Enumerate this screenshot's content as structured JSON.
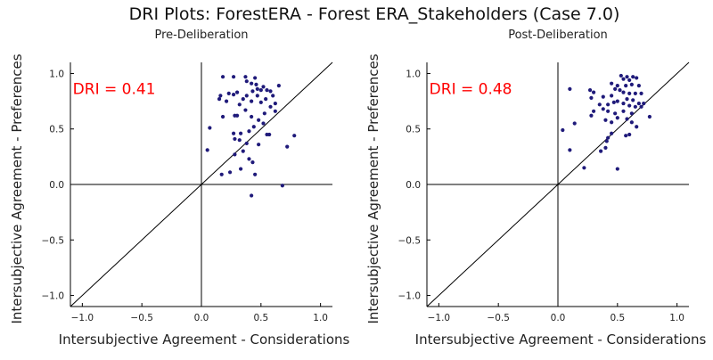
{
  "title": "DRI Plots: ForestERA - Forest ERA_Stakeholders (Case 7.0)",
  "chart_data": [
    {
      "type": "scatter",
      "title": "Pre-Deliberation",
      "annotation": "DRI = 0.41",
      "xlabel": "Intersubjective Agreement - Considerations",
      "ylabel": "Intersubjective Agreement - Preferences",
      "xlim": [
        -1.1,
        1.1
      ],
      "ylim": [
        -1.1,
        1.1
      ],
      "xticks": [
        "−1.0",
        "−0.5",
        "0.0",
        "0.5",
        "1.0"
      ],
      "yticks": [
        "−1.0",
        "−0.5",
        "0.0",
        "0.5",
        "1.0"
      ],
      "point_color": "#1f1a7a",
      "points": [
        [
          0.18,
          0.97
        ],
        [
          0.27,
          0.97
        ],
        [
          0.37,
          0.97
        ],
        [
          0.45,
          0.96
        ],
        [
          0.38,
          0.93
        ],
        [
          0.42,
          0.91
        ],
        [
          0.46,
          0.9
        ],
        [
          0.52,
          0.88
        ],
        [
          0.65,
          0.89
        ],
        [
          0.47,
          0.86
        ],
        [
          0.5,
          0.85
        ],
        [
          0.55,
          0.85
        ],
        [
          0.58,
          0.84
        ],
        [
          0.43,
          0.84
        ],
        [
          0.3,
          0.83
        ],
        [
          0.23,
          0.82
        ],
        [
          0.27,
          0.81
        ],
        [
          0.16,
          0.8
        ],
        [
          0.38,
          0.8
        ],
        [
          0.47,
          0.8
        ],
        [
          0.6,
          0.8
        ],
        [
          0.15,
          0.77
        ],
        [
          0.21,
          0.75
        ],
        [
          0.35,
          0.77
        ],
        [
          0.54,
          0.77
        ],
        [
          0.42,
          0.75
        ],
        [
          0.5,
          0.74
        ],
        [
          0.62,
          0.73
        ],
        [
          0.32,
          0.72
        ],
        [
          0.58,
          0.7
        ],
        [
          0.37,
          0.67
        ],
        [
          0.62,
          0.66
        ],
        [
          0.53,
          0.64
        ],
        [
          0.3,
          0.62
        ],
        [
          0.28,
          0.62
        ],
        [
          0.18,
          0.61
        ],
        [
          0.42,
          0.61
        ],
        [
          0.48,
          0.58
        ],
        [
          0.52,
          0.55
        ],
        [
          0.07,
          0.51
        ],
        [
          0.44,
          0.52
        ],
        [
          0.4,
          0.48
        ],
        [
          0.33,
          0.46
        ],
        [
          0.27,
          0.46
        ],
        [
          0.55,
          0.45
        ],
        [
          0.57,
          0.45
        ],
        [
          0.78,
          0.44
        ],
        [
          0.28,
          0.41
        ],
        [
          0.32,
          0.4
        ],
        [
          0.38,
          0.37
        ],
        [
          0.48,
          0.36
        ],
        [
          0.72,
          0.34
        ],
        [
          0.05,
          0.31
        ],
        [
          0.35,
          0.3
        ],
        [
          0.28,
          0.27
        ],
        [
          0.4,
          0.23
        ],
        [
          0.43,
          0.2
        ],
        [
          0.33,
          0.14
        ],
        [
          0.24,
          0.11
        ],
        [
          0.17,
          0.09
        ],
        [
          0.45,
          0.09
        ],
        [
          0.68,
          -0.01
        ],
        [
          0.42,
          -0.1
        ]
      ]
    },
    {
      "type": "scatter",
      "title": "Post-Deliberation",
      "annotation": "DRI = 0.48",
      "xlabel": "Intersubjective Agreement - Considerations",
      "ylabel": "Intersubjective Agreement - Preferences",
      "xlim": [
        -1.1,
        1.1
      ],
      "ylim": [
        -1.1,
        1.1
      ],
      "xticks": [
        "−1.0",
        "−0.5",
        "0.0",
        "0.5",
        "1.0"
      ],
      "yticks": [
        "−1.0",
        "−0.5",
        "0.0",
        "0.5",
        "1.0"
      ],
      "point_color": "#1f1a7a",
      "points": [
        [
          0.53,
          0.98
        ],
        [
          0.58,
          0.97
        ],
        [
          0.63,
          0.97
        ],
        [
          0.66,
          0.96
        ],
        [
          0.55,
          0.95
        ],
        [
          0.6,
          0.94
        ],
        [
          0.45,
          0.91
        ],
        [
          0.5,
          0.89
        ],
        [
          0.57,
          0.89
        ],
        [
          0.62,
          0.9
        ],
        [
          0.68,
          0.89
        ],
        [
          0.1,
          0.86
        ],
        [
          0.48,
          0.86
        ],
        [
          0.52,
          0.85
        ],
        [
          0.27,
          0.85
        ],
        [
          0.3,
          0.83
        ],
        [
          0.55,
          0.83
        ],
        [
          0.6,
          0.82
        ],
        [
          0.65,
          0.82
        ],
        [
          0.7,
          0.82
        ],
        [
          0.45,
          0.8
        ],
        [
          0.38,
          0.79
        ],
        [
          0.28,
          0.78
        ],
        [
          0.58,
          0.77
        ],
        [
          0.63,
          0.76
        ],
        [
          0.5,
          0.75
        ],
        [
          0.47,
          0.74
        ],
        [
          0.55,
          0.73
        ],
        [
          0.68,
          0.73
        ],
        [
          0.72,
          0.73
        ],
        [
          0.35,
          0.72
        ],
        [
          0.42,
          0.72
        ],
        [
          0.6,
          0.71
        ],
        [
          0.65,
          0.7
        ],
        [
          0.7,
          0.7
        ],
        [
          0.38,
          0.68
        ],
        [
          0.3,
          0.66
        ],
        [
          0.42,
          0.66
        ],
        [
          0.55,
          0.66
        ],
        [
          0.48,
          0.64
        ],
        [
          0.62,
          0.64
        ],
        [
          0.28,
          0.62
        ],
        [
          0.77,
          0.61
        ],
        [
          0.5,
          0.6
        ],
        [
          0.58,
          0.59
        ],
        [
          0.4,
          0.58
        ],
        [
          0.45,
          0.56
        ],
        [
          0.62,
          0.56
        ],
        [
          0.14,
          0.55
        ],
        [
          0.66,
          0.52
        ],
        [
          0.04,
          0.49
        ],
        [
          0.45,
          0.46
        ],
        [
          0.57,
          0.44
        ],
        [
          0.6,
          0.45
        ],
        [
          0.42,
          0.42
        ],
        [
          0.41,
          0.39
        ],
        [
          0.4,
          0.33
        ],
        [
          0.36,
          0.3
        ],
        [
          0.1,
          0.31
        ],
        [
          0.22,
          0.15
        ],
        [
          0.5,
          0.14
        ]
      ]
    }
  ]
}
